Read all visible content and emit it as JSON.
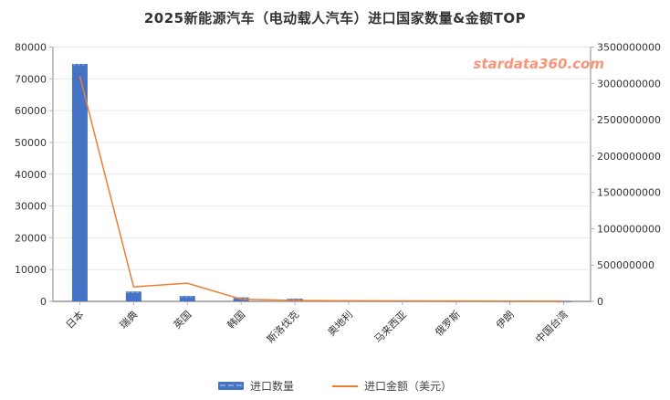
{
  "title": "2025新能源汽车（电动载人汽车）进口国家数量&金额TOP",
  "watermark": "stardata360.com",
  "colors": {
    "bar": "#4472c4",
    "bar_top_dash": "#8fb0e0",
    "line": "#ed7d31",
    "grid": "#e8e8e8",
    "axis": "#b0b0b0",
    "tick_label": "#333333",
    "watermark": "#f9967a"
  },
  "legend": [
    {
      "label": "进口数量",
      "type": "bar",
      "color": "#4472c4"
    },
    {
      "label": "进口金额（美元）",
      "type": "line",
      "color": "#ed7d31"
    }
  ],
  "chart_data": {
    "type": "bar",
    "subtype": "dual-axis bar+line combo",
    "title": "2025新能源汽车（电动载人汽车）进口国家数量&金额TOP",
    "categories": [
      "日本",
      "瑞典",
      "英国",
      "韩国",
      "斯洛伐克",
      "奥地利",
      "马来西亚",
      "俄罗斯",
      "伊朗",
      "中国台湾"
    ],
    "series": [
      {
        "name": "进口数量",
        "type": "bar",
        "axis": "left",
        "color": "#4472c4",
        "values": [
          74700,
          3100,
          1700,
          1250,
          850,
          350,
          150,
          100,
          60,
          40
        ]
      },
      {
        "name": "进口金额（美元）",
        "type": "line",
        "axis": "right",
        "color": "#ed7d31",
        "values": [
          3100000000,
          200000000,
          250000000,
          30000000,
          12000000,
          8000000,
          6000000,
          5000000,
          3000000,
          2000000
        ]
      }
    ],
    "left_axis": {
      "min": 0,
      "max": 80000,
      "step": 10000,
      "ticks": [
        "0",
        "10000",
        "20000",
        "30000",
        "40000",
        "50000",
        "60000",
        "70000",
        "80000"
      ]
    },
    "right_axis": {
      "min": 0,
      "max": 3500000000,
      "step": 500000000,
      "ticks": [
        "0",
        "500000000",
        "1000000000",
        "1500000000",
        "2000000000",
        "2500000000",
        "3000000000",
        "3500000000"
      ]
    },
    "x_label_rotation_deg": 45,
    "grid": true,
    "legend_position": "bottom"
  }
}
